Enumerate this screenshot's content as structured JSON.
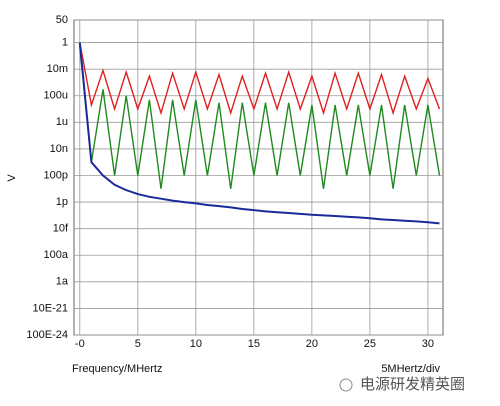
{
  "chart_data": {
    "type": "line",
    "y_label": "V",
    "x_label": "Frequency/MHertz",
    "x_scale_label": "5MHertz/div",
    "watermark": "电源研发精英圈",
    "log_y": true,
    "grid": true,
    "xlim": [
      -0.5,
      31.3
    ],
    "xticks": [
      {
        "value": 0,
        "label": "-0"
      },
      5,
      10,
      15,
      20,
      25,
      30
    ],
    "ylim": [
      1e-22,
      50
    ],
    "yticks": [
      50,
      1,
      {
        "value": 0.01,
        "label": "10m"
      },
      {
        "value": 0.0001,
        "label": "100u"
      },
      {
        "value": 1e-06,
        "label": "1u"
      },
      {
        "value": 1e-08,
        "label": "10n"
      },
      {
        "value": 1e-10,
        "label": "100p"
      },
      {
        "value": 1e-12,
        "label": "1p"
      },
      {
        "value": 1e-14,
        "label": "10f"
      },
      {
        "value": 1e-16,
        "label": "100a"
      },
      {
        "value": 1e-18,
        "label": "1a"
      },
      {
        "value": 1e-20,
        "label": "10E-21"
      },
      {
        "value": 1e-22,
        "label": "100E-24"
      }
    ],
    "x": [
      0,
      1,
      2,
      3,
      4,
      5,
      6,
      7,
      8,
      9,
      10,
      11,
      12,
      13,
      14,
      15,
      16,
      17,
      18,
      19,
      20,
      21,
      22,
      23,
      24,
      25,
      26,
      27,
      28,
      29,
      30,
      31
    ],
    "series": [
      {
        "color": "#e02020",
        "values": [
          1,
          2e-05,
          0.008,
          1e-05,
          0.006,
          1e-05,
          0.003,
          5e-06,
          0.005,
          1e-05,
          0.006,
          1e-05,
          0.004,
          5e-06,
          0.003,
          1e-05,
          0.005,
          1e-05,
          0.006,
          1e-05,
          0.003,
          5e-06,
          0.005,
          1e-05,
          0.005,
          1e-05,
          0.004,
          5e-06,
          0.003,
          1e-05,
          0.002,
          1e-05
        ]
      },
      {
        "color": "#1f8a1f",
        "values": [
          0.5,
          1e-09,
          0.0003,
          1e-10,
          0.0001,
          1e-10,
          5e-05,
          1e-11,
          5e-05,
          1e-10,
          5e-05,
          1e-10,
          3e-05,
          1e-11,
          3e-05,
          1e-10,
          3e-05,
          1e-10,
          3e-05,
          1e-10,
          2e-05,
          1e-11,
          2e-05,
          1e-10,
          2e-05,
          1e-10,
          2e-05,
          1e-11,
          2e-05,
          1e-10,
          2e-05,
          1e-10
        ]
      },
      {
        "color": "#1a2a9a",
        "values": [
          1,
          1e-09,
          1e-10,
          2e-11,
          8e-12,
          4e-12,
          2.5e-12,
          1.8e-12,
          1.3e-12,
          1e-12,
          8e-13,
          6e-13,
          5e-13,
          4e-13,
          3e-13,
          2.5e-13,
          2e-13,
          1.7e-13,
          1.5e-13,
          1.3e-13,
          1.1e-13,
          1e-13,
          9e-14,
          8e-14,
          7e-14,
          6e-14,
          5e-14,
          4.5e-14,
          4e-14,
          3.5e-14,
          3e-14,
          2.5e-14
        ]
      }
    ]
  }
}
